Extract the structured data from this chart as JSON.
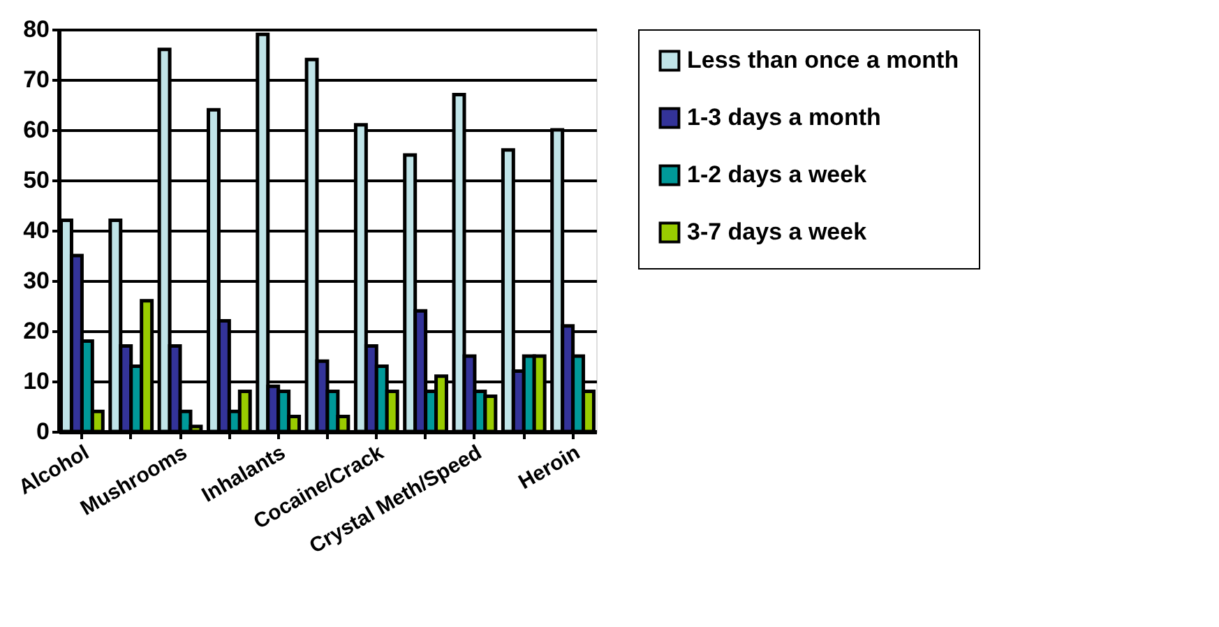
{
  "chart_data": {
    "type": "bar",
    "categories": [
      "Alcohol",
      null,
      "Mushrooms",
      null,
      "Inhalants",
      null,
      "Cocaine/Crack",
      null,
      "Crystal Meth/Speed",
      null,
      "Heroin"
    ],
    "series": [
      {
        "name": "Less than once a month",
        "color": "#c0e4e8",
        "values": [
          42,
          42,
          76,
          64,
          79,
          74,
          61,
          55,
          67,
          56,
          60
        ]
      },
      {
        "name": "1-3 days a month",
        "color": "#333399",
        "values": [
          35,
          17,
          17,
          22,
          9,
          14,
          17,
          24,
          15,
          12,
          21
        ]
      },
      {
        "name": "1-2 days a week",
        "color": "#009999",
        "values": [
          18,
          13,
          4,
          4,
          8,
          8,
          13,
          8,
          8,
          15,
          15
        ]
      },
      {
        "name": "3-7 days a week",
        "color": "#99cc00",
        "values": [
          4,
          26,
          1,
          8,
          3,
          3,
          8,
          11,
          7,
          15,
          8
        ]
      }
    ],
    "ylim": [
      0,
      80
    ],
    "yticks": [
      0,
      10,
      20,
      30,
      40,
      50,
      60,
      70,
      80
    ],
    "grid": "y",
    "legend": "right"
  }
}
